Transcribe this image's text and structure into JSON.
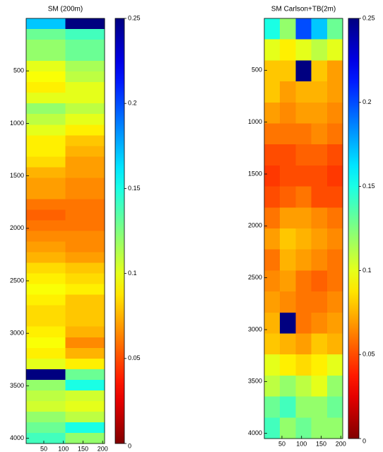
{
  "chart_data": [
    {
      "type": "heatmap",
      "title": "SM (200m)",
      "colormap": "jet_r",
      "xlim": [
        5,
        205
      ],
      "xticks": [
        50,
        100,
        150,
        200
      ],
      "ylim": [
        0,
        4050
      ],
      "yticks": [
        500,
        1000,
        1500,
        2000,
        2500,
        3000,
        3500,
        4000
      ],
      "clim": [
        0,
        0.25
      ],
      "cticks": [
        0,
        0.05,
        0.1,
        0.15,
        0.2,
        0.25
      ],
      "values": [
        [
          0.17,
          0.25
        ],
        [
          0.13,
          0.14
        ],
        [
          0.12,
          0.13
        ],
        [
          0.12,
          0.13
        ],
        [
          0.1,
          0.115
        ],
        [
          0.095,
          0.11
        ],
        [
          0.09,
          0.1
        ],
        [
          0.1,
          0.1
        ],
        [
          0.12,
          0.11
        ],
        [
          0.11,
          0.1
        ],
        [
          0.1,
          0.09
        ],
        [
          0.09,
          0.08
        ],
        [
          0.09,
          0.075
        ],
        [
          0.085,
          0.07
        ],
        [
          0.075,
          0.07
        ],
        [
          0.07,
          0.065
        ],
        [
          0.07,
          0.065
        ],
        [
          0.06,
          0.06
        ],
        [
          0.055,
          0.06
        ],
        [
          0.06,
          0.06
        ],
        [
          0.065,
          0.065
        ],
        [
          0.07,
          0.065
        ],
        [
          0.075,
          0.07
        ],
        [
          0.085,
          0.08
        ],
        [
          0.09,
          0.085
        ],
        [
          0.095,
          0.09
        ],
        [
          0.09,
          0.08
        ],
        [
          0.085,
          0.08
        ],
        [
          0.085,
          0.08
        ],
        [
          0.09,
          0.075
        ],
        [
          0.095,
          0.065
        ],
        [
          0.09,
          0.075
        ],
        [
          0.1,
          0.09
        ],
        [
          0.25,
          0.13
        ],
        [
          0.12,
          0.15
        ],
        [
          0.11,
          0.105
        ],
        [
          0.105,
          0.1
        ],
        [
          0.12,
          0.11
        ],
        [
          0.13,
          0.15
        ],
        [
          0.14,
          0.12
        ]
      ]
    },
    {
      "type": "heatmap",
      "title": "SM Carlson+TB(2m)",
      "colormap": "jet_r",
      "xlim": [
        5,
        205
      ],
      "xticks": [
        50,
        100,
        150,
        200
      ],
      "ylim": [
        0,
        4050
      ],
      "yticks": [
        500,
        1000,
        1500,
        2000,
        2500,
        3000,
        3500,
        4000
      ],
      "clim": [
        0,
        0.25
      ],
      "cticks": [
        0,
        0.05,
        0.1,
        0.15,
        0.2,
        0.25
      ],
      "values": [
        [
          0.15,
          0.12,
          0.2,
          0.17,
          0.13
        ],
        [
          0.1,
          0.09,
          0.1,
          0.11,
          0.1
        ],
        [
          0.08,
          0.08,
          0.25,
          0.08,
          0.07
        ],
        [
          0.08,
          0.07,
          0.075,
          0.075,
          0.07
        ],
        [
          0.07,
          0.065,
          0.07,
          0.07,
          0.065
        ],
        [
          0.06,
          0.06,
          0.06,
          0.065,
          0.06
        ],
        [
          0.05,
          0.05,
          0.055,
          0.055,
          0.05
        ],
        [
          0.045,
          0.05,
          0.05,
          0.05,
          0.045
        ],
        [
          0.05,
          0.055,
          0.06,
          0.05,
          0.05
        ],
        [
          0.06,
          0.07,
          0.07,
          0.065,
          0.06
        ],
        [
          0.07,
          0.08,
          0.075,
          0.07,
          0.065
        ],
        [
          0.06,
          0.075,
          0.07,
          0.065,
          0.06
        ],
        [
          0.065,
          0.07,
          0.06,
          0.055,
          0.06
        ],
        [
          0.07,
          0.065,
          0.06,
          0.06,
          0.065
        ],
        [
          0.075,
          0.25,
          0.06,
          0.065,
          0.07
        ],
        [
          0.08,
          0.075,
          0.07,
          0.08,
          0.075
        ],
        [
          0.1,
          0.09,
          0.085,
          0.09,
          0.1
        ],
        [
          0.11,
          0.12,
          0.11,
          0.1,
          0.12
        ],
        [
          0.13,
          0.14,
          0.12,
          0.12,
          0.13
        ],
        [
          0.14,
          0.12,
          0.13,
          0.12,
          0.12
        ]
      ]
    }
  ]
}
